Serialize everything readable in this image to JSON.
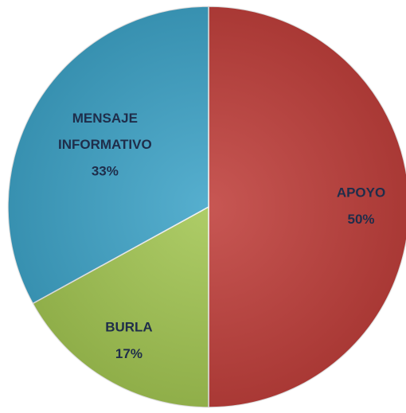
{
  "chart_data": {
    "type": "pie",
    "categories": [
      "APOYO",
      "BURLA",
      "MENSAJE INFORMATIVO"
    ],
    "values": [
      50,
      17,
      33
    ],
    "value_labels": [
      "50%",
      "17%",
      "33%"
    ],
    "colors": [
      "#c0403c",
      "#a3c653",
      "#3fa4c8"
    ]
  }
}
